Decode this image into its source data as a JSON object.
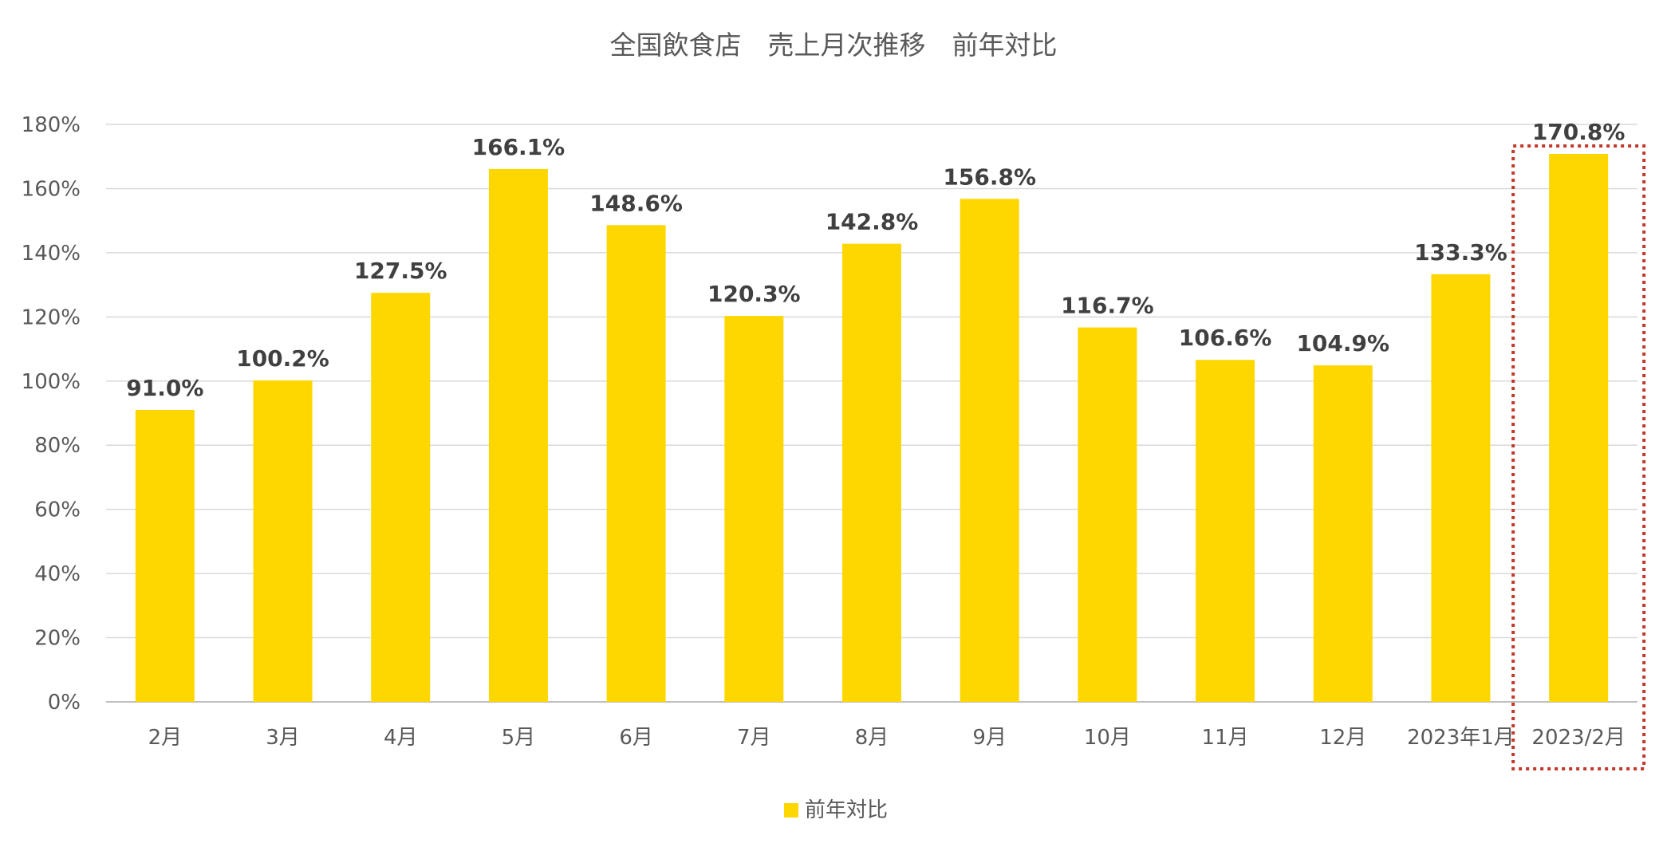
{
  "chart_data": {
    "type": "bar",
    "title": "全国飲食店　売上月次推移　前年対比",
    "categories": [
      "2月",
      "3月",
      "4月",
      "5月",
      "6月",
      "7月",
      "8月",
      "9月",
      "10月",
      "11月",
      "12月",
      "2023年1月",
      "2023/2月"
    ],
    "series": [
      {
        "name": "前年対比",
        "values": [
          91.0,
          100.2,
          127.5,
          166.1,
          148.6,
          120.3,
          142.8,
          156.8,
          116.7,
          106.6,
          104.9,
          133.3,
          170.8
        ],
        "labels": [
          "91.0%",
          "100.2%",
          "127.5%",
          "166.1%",
          "148.6%",
          "120.3%",
          "142.8%",
          "156.8%",
          "116.7%",
          "106.6%",
          "104.9%",
          "133.3%",
          "170.8%"
        ]
      }
    ],
    "ylim": [
      0,
      180
    ],
    "yticks": [
      "0%",
      "20%",
      "40%",
      "60%",
      "80%",
      "100%",
      "120%",
      "140%",
      "160%",
      "180%"
    ],
    "grid": true,
    "legend_placement": "bottom",
    "highlighted_category": "2023/2月",
    "colors": {
      "bar": "#FFD700",
      "grid": "#D9D9D9",
      "highlight_box": "#C0392B"
    }
  }
}
